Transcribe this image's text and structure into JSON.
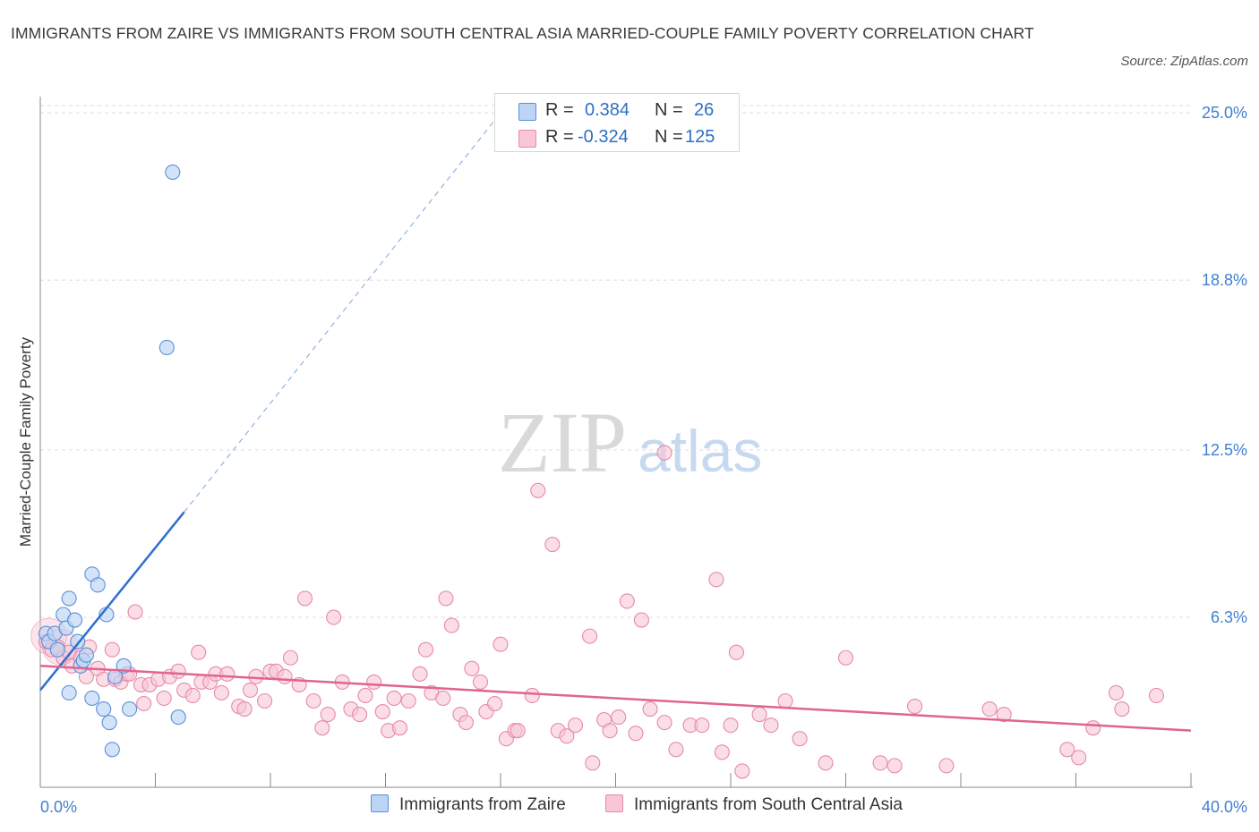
{
  "title": "IMMIGRANTS FROM ZAIRE VS IMMIGRANTS FROM SOUTH CENTRAL ASIA MARRIED-COUPLE FAMILY POVERTY CORRELATION CHART",
  "source": "Source: ZipAtlas.com",
  "watermark": {
    "zip": "ZIP",
    "atlas": "atlas"
  },
  "legend": {
    "zaire": {
      "r_label": "R =",
      "r_value": "0.384",
      "n_label": "N =",
      "n_value": "26"
    },
    "sca": {
      "r_label": "R =",
      "r_value": "-0.324",
      "n_label": "N =",
      "n_value": "125"
    }
  },
  "colors": {
    "zaire_fill": "#bdd5f5",
    "zaire_stroke": "#5b8fd6",
    "zaire_line": "#2f6fd0",
    "sca_fill": "#f8c6d6",
    "sca_stroke": "#e68aa8",
    "sca_line": "#e0648f",
    "grid": "#dcdcdc",
    "tick_text": "#3f7fd0"
  },
  "chart_data": {
    "type": "scatter",
    "title": "IMMIGRANTS FROM ZAIRE VS IMMIGRANTS FROM SOUTH CENTRAL ASIA MARRIED-COUPLE FAMILY POVERTY CORRELATION CHART",
    "xlabel": "",
    "ylabel": "Married-Couple Family Poverty",
    "xlim": [
      0,
      40
    ],
    "ylim": [
      0,
      25.6
    ],
    "x_tick_labels": [
      {
        "value": 0,
        "label": "0.0%"
      },
      {
        "value": 40,
        "label": "40.0%"
      }
    ],
    "y_tick_labels": [
      {
        "value": 25.0,
        "label": "25.0%"
      },
      {
        "value": 18.8,
        "label": "18.8%"
      },
      {
        "value": 12.5,
        "label": "12.5%"
      },
      {
        "value": 6.3,
        "label": "6.3%"
      }
    ],
    "series": [
      {
        "name": "Immigrants from Zaire",
        "r": 0.384,
        "n": 26,
        "points": [
          [
            0.2,
            5.7
          ],
          [
            0.3,
            5.4
          ],
          [
            0.5,
            5.7
          ],
          [
            0.6,
            5.1
          ],
          [
            0.8,
            6.4
          ],
          [
            0.9,
            5.9
          ],
          [
            1.0,
            3.5
          ],
          [
            1.0,
            7.0
          ],
          [
            1.2,
            6.2
          ],
          [
            1.3,
            5.4
          ],
          [
            1.4,
            4.5
          ],
          [
            1.5,
            4.7
          ],
          [
            1.6,
            4.9
          ],
          [
            1.8,
            7.9
          ],
          [
            1.8,
            3.3
          ],
          [
            2.0,
            7.5
          ],
          [
            2.2,
            2.9
          ],
          [
            2.3,
            6.4
          ],
          [
            2.4,
            2.4
          ],
          [
            2.5,
            1.4
          ],
          [
            2.6,
            4.1
          ],
          [
            2.9,
            4.5
          ],
          [
            3.1,
            2.9
          ],
          [
            4.4,
            16.3
          ],
          [
            4.6,
            22.8
          ],
          [
            4.8,
            2.6
          ]
        ],
        "trend": {
          "x1": 0.0,
          "y1": 3.6,
          "x2": 5.0,
          "y2": 10.2,
          "dash_to_x": 16.0,
          "dash_to_y": 25.0
        }
      },
      {
        "name": "Immigrants from South Central Asia",
        "r": -0.324,
        "n": 125,
        "points": [
          [
            0.2,
            5.4
          ],
          [
            0.4,
            5.1
          ],
          [
            0.6,
            5.2
          ],
          [
            0.8,
            4.8
          ],
          [
            1.0,
            5.0
          ],
          [
            1.1,
            4.5
          ],
          [
            1.4,
            4.8
          ],
          [
            1.6,
            4.1
          ],
          [
            1.7,
            5.2
          ],
          [
            2.0,
            4.4
          ],
          [
            2.2,
            4.0
          ],
          [
            2.5,
            5.1
          ],
          [
            2.6,
            4.0
          ],
          [
            2.8,
            3.9
          ],
          [
            3.0,
            4.2
          ],
          [
            3.1,
            4.2
          ],
          [
            3.3,
            6.5
          ],
          [
            3.5,
            3.8
          ],
          [
            3.6,
            3.1
          ],
          [
            3.8,
            3.8
          ],
          [
            4.1,
            4.0
          ],
          [
            4.3,
            3.3
          ],
          [
            4.5,
            4.1
          ],
          [
            4.8,
            4.3
          ],
          [
            5.0,
            3.6
          ],
          [
            5.3,
            3.4
          ],
          [
            5.5,
            5.0
          ],
          [
            5.6,
            3.9
          ],
          [
            5.9,
            3.9
          ],
          [
            6.1,
            4.2
          ],
          [
            6.3,
            3.5
          ],
          [
            6.5,
            4.2
          ],
          [
            6.9,
            3.0
          ],
          [
            7.1,
            2.9
          ],
          [
            7.3,
            3.6
          ],
          [
            7.5,
            4.1
          ],
          [
            7.8,
            3.2
          ],
          [
            8.0,
            4.3
          ],
          [
            8.2,
            4.3
          ],
          [
            8.5,
            4.1
          ],
          [
            8.7,
            4.8
          ],
          [
            9.0,
            3.8
          ],
          [
            9.2,
            7.0
          ],
          [
            9.5,
            3.2
          ],
          [
            9.8,
            2.2
          ],
          [
            10.0,
            2.7
          ],
          [
            10.2,
            6.3
          ],
          [
            10.5,
            3.9
          ],
          [
            10.8,
            2.9
          ],
          [
            11.1,
            2.7
          ],
          [
            11.3,
            3.4
          ],
          [
            11.6,
            3.9
          ],
          [
            11.9,
            2.8
          ],
          [
            12.1,
            2.1
          ],
          [
            12.3,
            3.3
          ],
          [
            12.5,
            2.2
          ],
          [
            12.8,
            3.2
          ],
          [
            13.2,
            4.2
          ],
          [
            13.4,
            5.1
          ],
          [
            13.6,
            3.5
          ],
          [
            14.0,
            3.3
          ],
          [
            14.1,
            7.0
          ],
          [
            14.3,
            6.0
          ],
          [
            14.6,
            2.7
          ],
          [
            14.8,
            2.4
          ],
          [
            15.0,
            4.4
          ],
          [
            15.3,
            3.9
          ],
          [
            15.5,
            2.8
          ],
          [
            15.8,
            3.1
          ],
          [
            16.0,
            5.3
          ],
          [
            16.2,
            1.8
          ],
          [
            16.5,
            2.1
          ],
          [
            16.6,
            2.1
          ],
          [
            17.1,
            3.4
          ],
          [
            17.3,
            11.0
          ],
          [
            17.8,
            9.0
          ],
          [
            18.0,
            2.1
          ],
          [
            18.3,
            1.9
          ],
          [
            18.6,
            2.3
          ],
          [
            19.1,
            5.6
          ],
          [
            19.2,
            0.9
          ],
          [
            19.6,
            2.5
          ],
          [
            19.8,
            2.1
          ],
          [
            20.1,
            2.6
          ],
          [
            20.4,
            6.9
          ],
          [
            20.7,
            2.0
          ],
          [
            20.9,
            6.2
          ],
          [
            21.2,
            2.9
          ],
          [
            21.7,
            12.4
          ],
          [
            21.7,
            2.4
          ],
          [
            22.1,
            1.4
          ],
          [
            22.6,
            2.3
          ],
          [
            23.0,
            2.3
          ],
          [
            23.5,
            7.7
          ],
          [
            23.7,
            1.3
          ],
          [
            24.0,
            2.3
          ],
          [
            24.2,
            5.0
          ],
          [
            24.4,
            0.6
          ],
          [
            25.0,
            2.7
          ],
          [
            25.4,
            2.3
          ],
          [
            25.9,
            3.2
          ],
          [
            26.4,
            1.8
          ],
          [
            27.3,
            0.9
          ],
          [
            28.0,
            4.8
          ],
          [
            29.2,
            0.9
          ],
          [
            29.7,
            0.8
          ],
          [
            30.4,
            3.0
          ],
          [
            31.5,
            0.8
          ],
          [
            33.0,
            2.9
          ],
          [
            33.5,
            2.7
          ],
          [
            35.7,
            1.4
          ],
          [
            36.1,
            1.1
          ],
          [
            36.6,
            2.2
          ],
          [
            37.4,
            3.5
          ],
          [
            37.6,
            2.9
          ],
          [
            38.8,
            3.4
          ]
        ],
        "big_points": [
          [
            0.3,
            5.6
          ],
          [
            0.7,
            5.2
          ]
        ],
        "trend": {
          "x1": 0.0,
          "y1": 4.5,
          "x2": 40.0,
          "y2": 2.1
        }
      }
    ]
  }
}
